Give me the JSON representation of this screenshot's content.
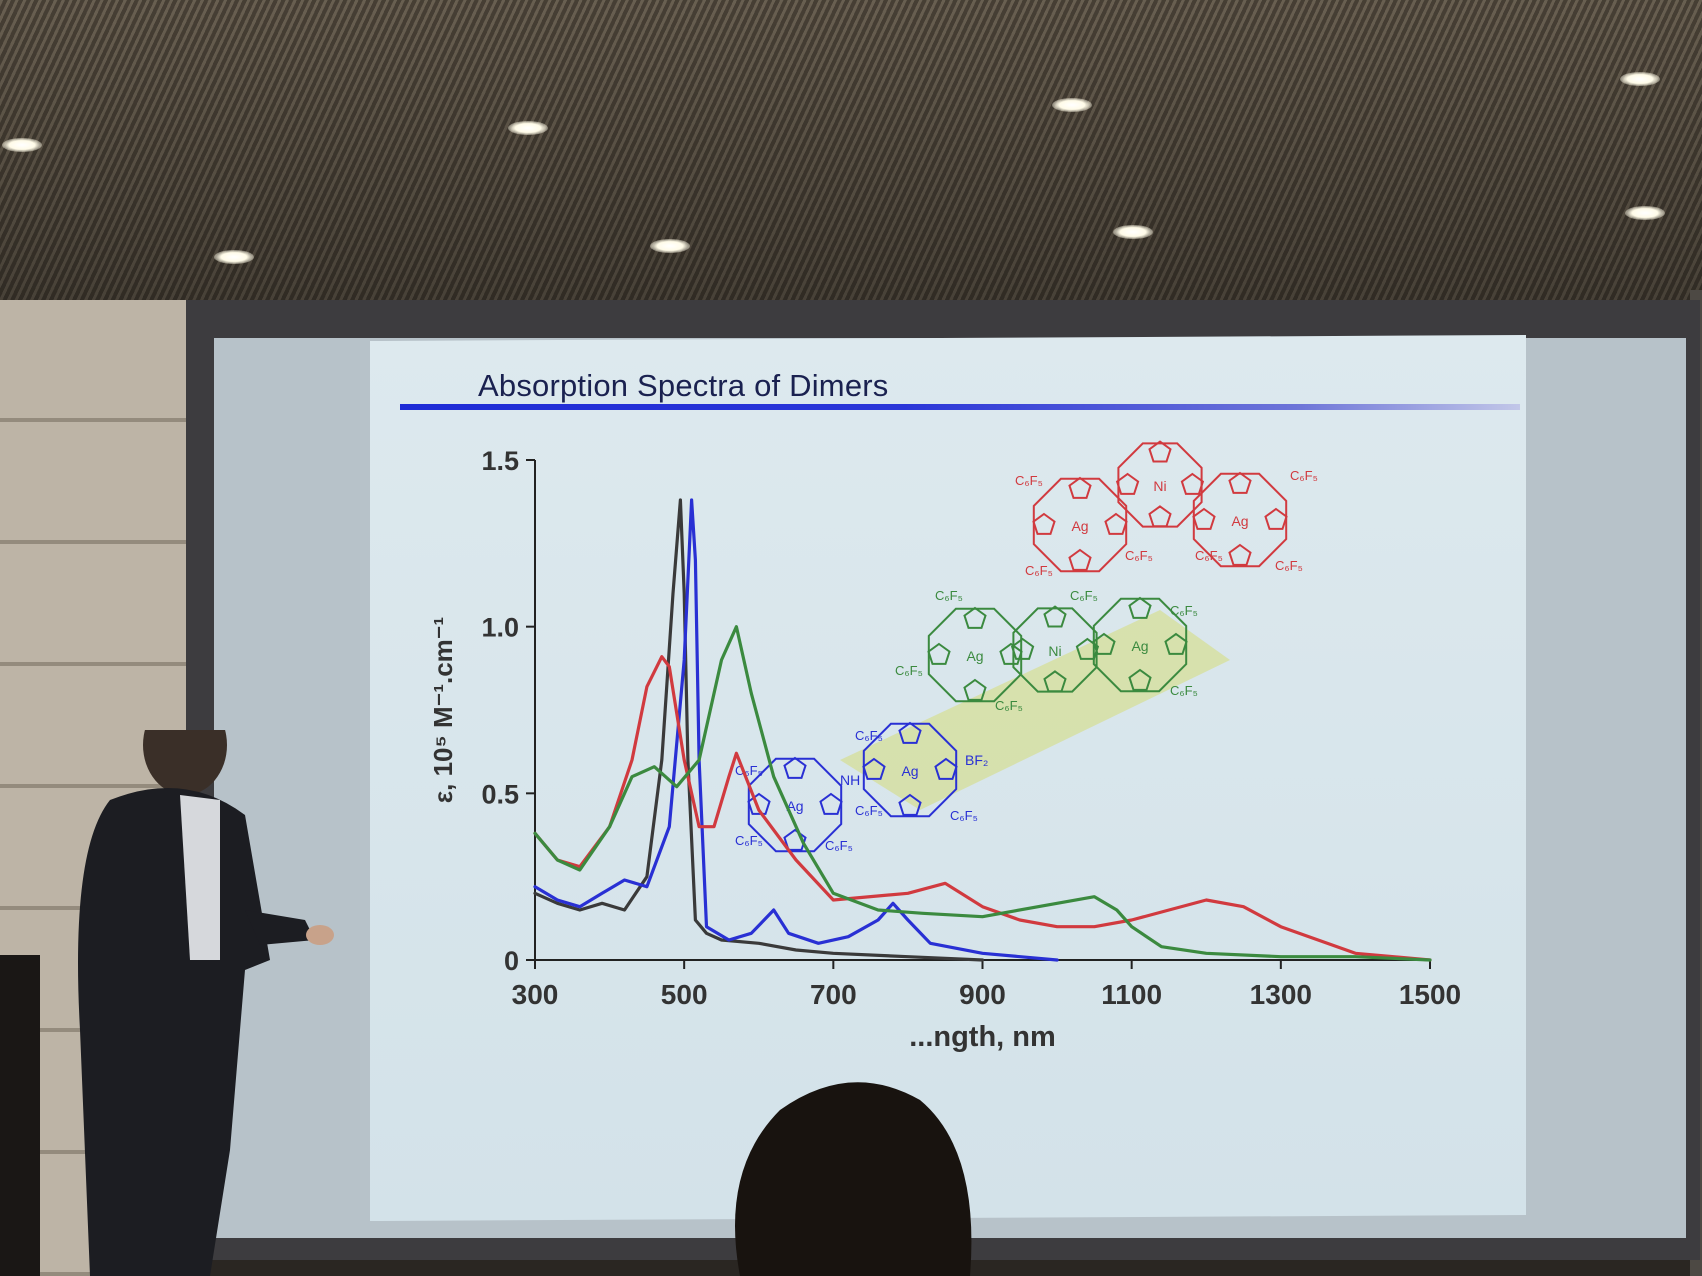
{
  "slide": {
    "title": "Absorption Spectra of Dimers"
  },
  "colors": {
    "title_bar": "#2b36d8",
    "red_series": "#d13a3f",
    "green_series": "#3b8a3f",
    "blue_series": "#2930d4",
    "black_series": "#3a3a3a",
    "slide_background": "#d8e6ec"
  },
  "chart_data": {
    "type": "line",
    "title": "",
    "xlabel": "...ngth, nm",
    "ylabel": "ε, 10⁵ M⁻¹.cm⁻¹",
    "xlim": [
      300,
      1500
    ],
    "ylim": [
      0,
      1.5
    ],
    "x_ticks": [
      "300",
      "500",
      "700",
      "900",
      "1100",
      "1300",
      "1500"
    ],
    "y_ticks": [
      "0",
      "0.5",
      "1.0",
      "1.5"
    ],
    "grid": false,
    "legend": "none",
    "series": [
      {
        "color": "#3a3a3a",
        "x": [
          300,
          330,
          360,
          390,
          420,
          450,
          470,
          485,
          495,
          500,
          505,
          515,
          530,
          550,
          600,
          650,
          700,
          800,
          900
        ],
        "y": [
          0.2,
          0.17,
          0.15,
          0.17,
          0.15,
          0.25,
          0.6,
          1.1,
          1.38,
          1.1,
          0.6,
          0.12,
          0.08,
          0.06,
          0.05,
          0.03,
          0.02,
          0.01,
          0.0
        ]
      },
      {
        "color": "#2930d4",
        "x": [
          300,
          330,
          360,
          390,
          420,
          450,
          480,
          500,
          510,
          515,
          520,
          530,
          560,
          590,
          620,
          640,
          680,
          720,
          760,
          780,
          800,
          830,
          900,
          1000
        ],
        "y": [
          0.22,
          0.18,
          0.16,
          0.2,
          0.24,
          0.22,
          0.4,
          0.9,
          1.38,
          1.2,
          0.6,
          0.1,
          0.06,
          0.08,
          0.15,
          0.08,
          0.05,
          0.07,
          0.12,
          0.17,
          0.12,
          0.05,
          0.02,
          0.0
        ]
      },
      {
        "color": "#d13a3f",
        "x": [
          300,
          330,
          360,
          400,
          430,
          450,
          470,
          480,
          500,
          520,
          540,
          560,
          570,
          600,
          650,
          700,
          800,
          850,
          900,
          950,
          1000,
          1050,
          1100,
          1150,
          1200,
          1250,
          1300,
          1400,
          1500
        ],
        "y": [
          0.38,
          0.3,
          0.28,
          0.4,
          0.6,
          0.82,
          0.91,
          0.88,
          0.6,
          0.4,
          0.4,
          0.55,
          0.62,
          0.45,
          0.3,
          0.18,
          0.2,
          0.23,
          0.16,
          0.12,
          0.1,
          0.1,
          0.12,
          0.15,
          0.18,
          0.16,
          0.1,
          0.02,
          0.0
        ]
      },
      {
        "color": "#3b8a3f",
        "x": [
          300,
          330,
          360,
          400,
          430,
          460,
          490,
          520,
          550,
          570,
          590,
          620,
          660,
          700,
          760,
          820,
          900,
          1000,
          1050,
          1080,
          1100,
          1140,
          1200,
          1300,
          1400,
          1500
        ],
        "y": [
          0.38,
          0.3,
          0.27,
          0.4,
          0.55,
          0.58,
          0.52,
          0.6,
          0.9,
          1.0,
          0.8,
          0.55,
          0.35,
          0.2,
          0.15,
          0.14,
          0.13,
          0.17,
          0.19,
          0.15,
          0.1,
          0.04,
          0.02,
          0.01,
          0.01,
          0.0
        ]
      }
    ],
    "annotations": [
      "NH",
      "BF₂",
      "Ag",
      "Ni",
      "C₆F₅"
    ]
  }
}
